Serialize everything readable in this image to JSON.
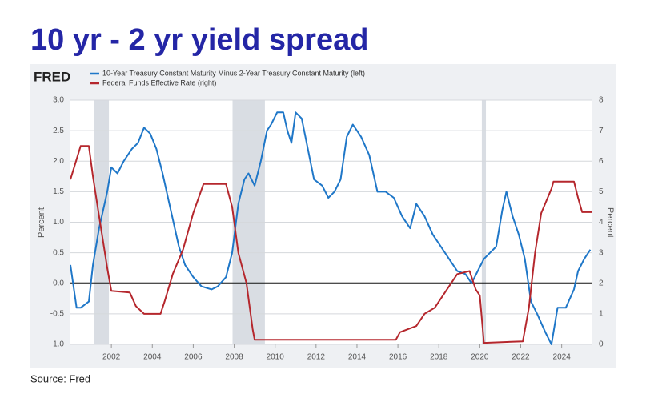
{
  "chart_data": {
    "type": "line",
    "title": "10 yr - 2 yr yield spread",
    "brand": "FRED",
    "source": "Source: Fred",
    "ylabel": "Percent",
    "y2label": "Percent",
    "xlim": [
      2000,
      2025.5
    ],
    "xticks": [
      2002,
      2004,
      2006,
      2008,
      2010,
      2012,
      2014,
      2016,
      2018,
      2020,
      2022,
      2024
    ],
    "ylim": [
      -1,
      3
    ],
    "yticks": [
      {
        "value": -1,
        "label": "-1.0"
      },
      -0.5,
      {
        "value": 0,
        "label": "0.0"
      },
      0.5,
      {
        "value": 1,
        "label": "1.0"
      },
      1.5,
      {
        "value": 2,
        "label": "2.0"
      },
      2.5,
      {
        "value": 3,
        "label": "3.0"
      }
    ],
    "y2lim": [
      0,
      8
    ],
    "y2ticks": [
      0,
      1,
      2,
      3,
      4,
      5,
      6,
      7,
      8
    ],
    "grid": true,
    "zero_line": 0,
    "recessions": [
      [
        2001.17,
        2001.88
      ],
      [
        2007.92,
        2009.5
      ],
      [
        2020.1,
        2020.3
      ]
    ],
    "series": [
      {
        "name": "10-Year Treasury Constant Maturity Minus 2-Year Treasury Constant Maturity (left)",
        "color": "#1f77c8",
        "x": [
          2000.0,
          2000.3,
          2000.5,
          2000.9,
          2001.1,
          2001.4,
          2001.8,
          2002.0,
          2002.3,
          2002.6,
          2003.0,
          2003.3,
          2003.6,
          2003.9,
          2004.2,
          2004.5,
          2004.9,
          2005.3,
          2005.6,
          2006.0,
          2006.4,
          2006.9,
          2007.2,
          2007.6,
          2007.9,
          2008.2,
          2008.5,
          2008.7,
          2009.0,
          2009.3,
          2009.6,
          2009.8,
          2010.1,
          2010.4,
          2010.6,
          2010.8,
          2011.0,
          2011.3,
          2011.6,
          2011.9,
          2012.3,
          2012.6,
          2012.9,
          2013.2,
          2013.5,
          2013.8,
          2014.2,
          2014.6,
          2015.0,
          2015.4,
          2015.8,
          2016.2,
          2016.6,
          2016.9,
          2017.3,
          2017.7,
          2018.1,
          2018.5,
          2018.9,
          2019.3,
          2019.6,
          2019.9,
          2020.2,
          2020.5,
          2020.8,
          2021.1,
          2021.3,
          2021.6,
          2021.9,
          2022.2,
          2022.5,
          2022.8,
          2023.2,
          2023.5,
          2023.8,
          2024.2,
          2024.6,
          2024.8,
          2025.1,
          2025.4
        ],
        "values": [
          0.3,
          -0.4,
          -0.4,
          -0.3,
          0.3,
          0.9,
          1.5,
          1.9,
          1.8,
          2.0,
          2.2,
          2.3,
          2.55,
          2.45,
          2.2,
          1.8,
          1.2,
          0.6,
          0.3,
          0.1,
          -0.05,
          -0.1,
          -0.05,
          0.1,
          0.5,
          1.3,
          1.7,
          1.8,
          1.6,
          2.0,
          2.5,
          2.6,
          2.8,
          2.8,
          2.5,
          2.3,
          2.8,
          2.7,
          2.2,
          1.7,
          1.6,
          1.4,
          1.5,
          1.7,
          2.4,
          2.6,
          2.4,
          2.1,
          1.5,
          1.5,
          1.4,
          1.1,
          0.9,
          1.3,
          1.1,
          0.8,
          0.6,
          0.4,
          0.2,
          0.15,
          0.0,
          0.2,
          0.4,
          0.5,
          0.6,
          1.2,
          1.5,
          1.1,
          0.8,
          0.4,
          -0.3,
          -0.5,
          -0.8,
          -1.0,
          -0.4,
          -0.4,
          -0.1,
          0.2,
          0.4,
          0.55
        ]
      },
      {
        "name": "Federal Funds Effective Rate (right)",
        "color": "#b5272d",
        "axis": "y2",
        "x": [
          2000.0,
          2000.5,
          2000.9,
          2001.1,
          2001.4,
          2001.8,
          2002.0,
          2002.9,
          2003.2,
          2003.6,
          2004.4,
          2004.6,
          2005.0,
          2005.5,
          2006.0,
          2006.5,
          2007.6,
          2007.9,
          2008.2,
          2008.6,
          2008.9,
          2009.0,
          2015.9,
          2016.1,
          2016.9,
          2017.3,
          2017.8,
          2018.3,
          2018.9,
          2019.5,
          2019.8,
          2020.0,
          2020.2,
          2022.1,
          2022.4,
          2022.7,
          2023.0,
          2023.5,
          2023.6,
          2024.6,
          2024.8,
          2025.0,
          2025.5
        ],
        "values": [
          5.4,
          6.5,
          6.5,
          5.5,
          4.2,
          2.5,
          1.75,
          1.7,
          1.25,
          1.0,
          1.0,
          1.4,
          2.3,
          3.1,
          4.3,
          5.25,
          5.25,
          4.5,
          3.0,
          2.0,
          0.5,
          0.15,
          0.15,
          0.4,
          0.6,
          1.0,
          1.2,
          1.7,
          2.3,
          2.4,
          1.8,
          1.6,
          0.05,
          0.1,
          1.2,
          3.0,
          4.3,
          5.1,
          5.33,
          5.33,
          4.8,
          4.33,
          4.33
        ]
      }
    ]
  }
}
